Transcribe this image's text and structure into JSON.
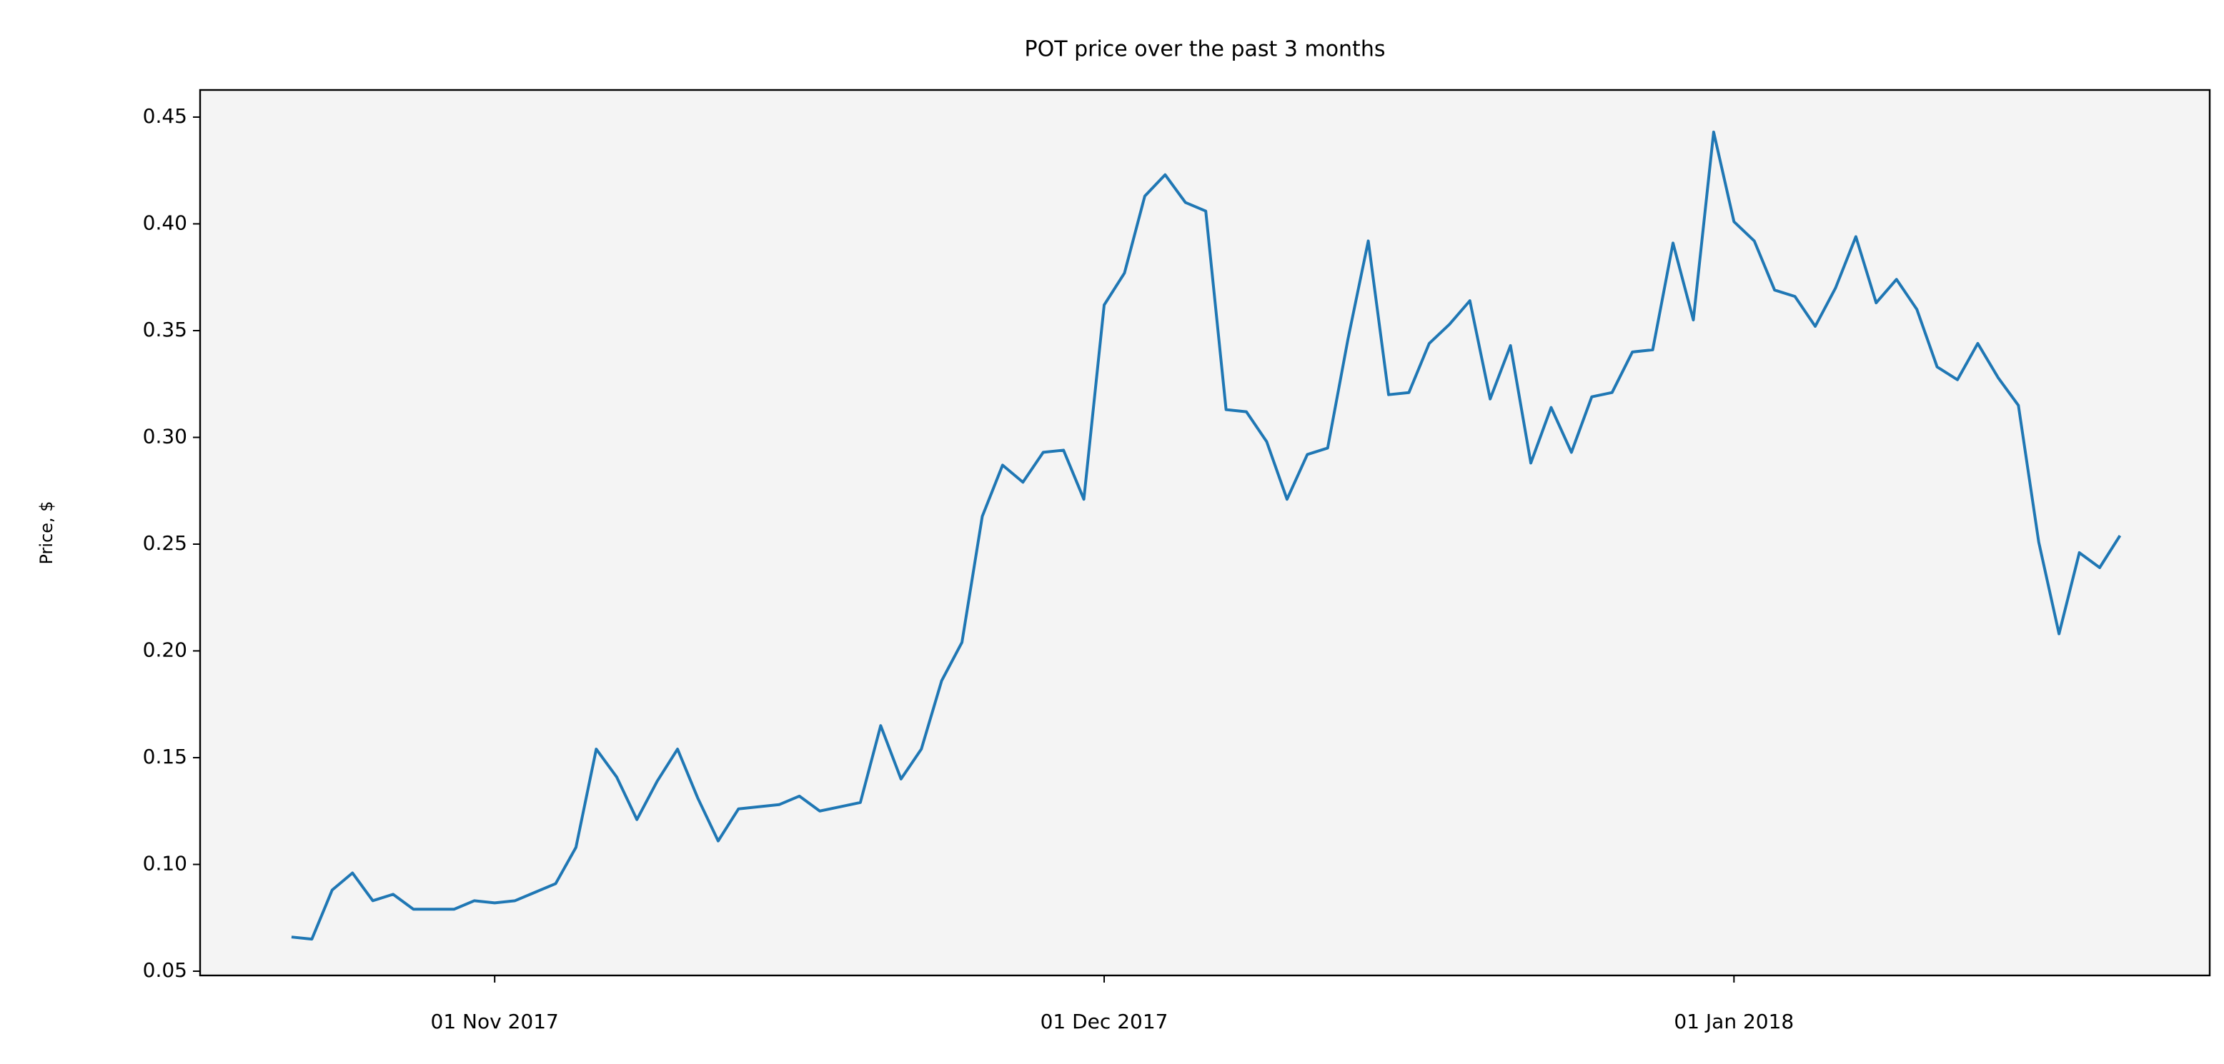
{
  "chart_data": {
    "type": "line",
    "title": "POT price over the past 3 months",
    "y_label": "Price, $",
    "x": [
      "2017-10-22",
      "2017-10-23",
      "2017-10-24",
      "2017-10-25",
      "2017-10-26",
      "2017-10-27",
      "2017-10-28",
      "2017-10-29",
      "2017-10-30",
      "2017-10-31",
      "2017-11-01",
      "2017-11-02",
      "2017-11-03",
      "2017-11-04",
      "2017-11-05",
      "2017-11-06",
      "2017-11-07",
      "2017-11-08",
      "2017-11-09",
      "2017-11-10",
      "2017-11-11",
      "2017-11-12",
      "2017-11-13",
      "2017-11-14",
      "2017-11-15",
      "2017-11-16",
      "2017-11-17",
      "2017-11-18",
      "2017-11-19",
      "2017-11-20",
      "2017-11-21",
      "2017-11-22",
      "2017-11-23",
      "2017-11-24",
      "2017-11-25",
      "2017-11-26",
      "2017-11-27",
      "2017-11-28",
      "2017-11-29",
      "2017-11-30",
      "2017-12-01",
      "2017-12-02",
      "2017-12-03",
      "2017-12-04",
      "2017-12-05",
      "2017-12-06",
      "2017-12-07",
      "2017-12-08",
      "2017-12-09",
      "2017-12-10",
      "2017-12-11",
      "2017-12-12",
      "2017-12-13",
      "2017-12-14",
      "2017-12-15",
      "2017-12-16",
      "2017-12-17",
      "2017-12-18",
      "2017-12-19",
      "2017-12-20",
      "2017-12-21",
      "2017-12-22",
      "2017-12-23",
      "2017-12-24",
      "2017-12-25",
      "2017-12-26",
      "2017-12-27",
      "2017-12-28",
      "2017-12-29",
      "2017-12-30",
      "2017-12-31",
      "2018-01-01",
      "2018-01-02",
      "2018-01-03",
      "2018-01-04",
      "2018-01-05",
      "2018-01-06",
      "2018-01-07",
      "2018-01-08",
      "2018-01-09",
      "2018-01-10",
      "2018-01-11",
      "2018-01-12",
      "2018-01-13",
      "2018-01-14",
      "2018-01-15",
      "2018-01-16",
      "2018-01-17",
      "2018-01-18",
      "2018-01-19",
      "2018-01-20"
    ],
    "series": [
      {
        "name": "POT",
        "color": "#1f77b4",
        "values": [
          0.066,
          0.065,
          0.088,
          0.096,
          0.083,
          0.086,
          0.079,
          0.079,
          0.079,
          0.083,
          0.082,
          0.083,
          0.087,
          0.091,
          0.108,
          0.154,
          0.141,
          0.121,
          0.139,
          0.154,
          0.131,
          0.111,
          0.126,
          0.127,
          0.128,
          0.132,
          0.125,
          0.127,
          0.129,
          0.165,
          0.14,
          0.154,
          0.186,
          0.204,
          0.263,
          0.287,
          0.279,
          0.293,
          0.294,
          0.271,
          0.362,
          0.377,
          0.413,
          0.423,
          0.41,
          0.406,
          0.313,
          0.312,
          0.298,
          0.271,
          0.292,
          0.295,
          0.346,
          0.392,
          0.32,
          0.321,
          0.344,
          0.353,
          0.364,
          0.318,
          0.343,
          0.288,
          0.314,
          0.293,
          0.319,
          0.321,
          0.34,
          0.341,
          0.391,
          0.355,
          0.443,
          0.401,
          0.392,
          0.369,
          0.366,
          0.352,
          0.37,
          0.394,
          0.363,
          0.374,
          0.36,
          0.333,
          0.327,
          0.344,
          0.328,
          0.315,
          0.251,
          0.208,
          0.246,
          0.239,
          0.254
        ]
      }
    ],
    "xlim": [
      "2017-10-17T12:00:00Z",
      "2018-01-24T10:00:00Z"
    ],
    "xticks": [
      {
        "value": "2017-11-01",
        "label": "01 Nov 2017"
      },
      {
        "value": "2017-12-01",
        "label": "01 Dec 2017"
      },
      {
        "value": "2018-01-01",
        "label": "01 Jan 2018"
      }
    ],
    "ylim": [
      0.048,
      0.4627
    ],
    "yticks": [
      {
        "value": 0.05,
        "label": "0.05"
      },
      {
        "value": 0.1,
        "label": "0.10"
      },
      {
        "value": 0.15,
        "label": "0.15"
      },
      {
        "value": 0.2,
        "label": "0.20"
      },
      {
        "value": 0.25,
        "label": "0.25"
      },
      {
        "value": 0.3,
        "label": "0.30"
      },
      {
        "value": 0.35,
        "label": "0.35"
      },
      {
        "value": 0.4,
        "label": "0.40"
      },
      {
        "value": 0.45,
        "label": "0.45"
      }
    ],
    "grid": false
  }
}
